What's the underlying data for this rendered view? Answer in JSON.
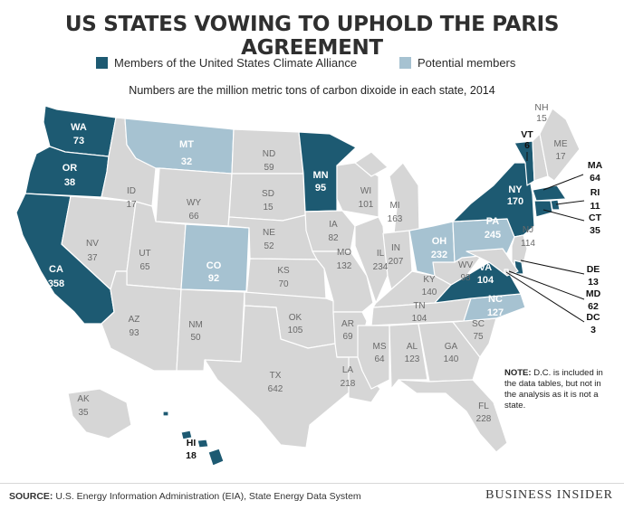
{
  "title": "US STATES VOWING TO UPHOLD THE PARIS AGREEMENT",
  "legend": {
    "members_label": "Members of the United States Climate Alliance",
    "potential_label": "Potential members"
  },
  "subtitle": "Numbers are the million metric tons of carbon dixoide in each state, 2014",
  "colors": {
    "member": "#1d5a72",
    "potential": "#a6c2d1",
    "other": "#d6d6d6",
    "border": "#ffffff"
  },
  "states": [
    {
      "abbr": "WA",
      "value": "73",
      "status": "member"
    },
    {
      "abbr": "OR",
      "value": "38",
      "status": "member"
    },
    {
      "abbr": "CA",
      "value": "358",
      "status": "member"
    },
    {
      "abbr": "NV",
      "value": "37",
      "status": "other"
    },
    {
      "abbr": "ID",
      "value": "17",
      "status": "other"
    },
    {
      "abbr": "MT",
      "value": "32",
      "status": "potential"
    },
    {
      "abbr": "WY",
      "value": "66",
      "status": "other"
    },
    {
      "abbr": "UT",
      "value": "65",
      "status": "other"
    },
    {
      "abbr": "CO",
      "value": "92",
      "status": "potential"
    },
    {
      "abbr": "AZ",
      "value": "93",
      "status": "other"
    },
    {
      "abbr": "NM",
      "value": "50",
      "status": "other"
    },
    {
      "abbr": "ND",
      "value": "59",
      "status": "other"
    },
    {
      "abbr": "SD",
      "value": "15",
      "status": "other"
    },
    {
      "abbr": "NE",
      "value": "52",
      "status": "other"
    },
    {
      "abbr": "KS",
      "value": "70",
      "status": "other"
    },
    {
      "abbr": "OK",
      "value": "105",
      "status": "other"
    },
    {
      "abbr": "TX",
      "value": "642",
      "status": "other"
    },
    {
      "abbr": "MN",
      "value": "95",
      "status": "member"
    },
    {
      "abbr": "IA",
      "value": "82",
      "status": "other"
    },
    {
      "abbr": "MO",
      "value": "132",
      "status": "other"
    },
    {
      "abbr": "AR",
      "value": "69",
      "status": "other"
    },
    {
      "abbr": "LA",
      "value": "218",
      "status": "other"
    },
    {
      "abbr": "WI",
      "value": "101",
      "status": "other"
    },
    {
      "abbr": "IL",
      "value": "234",
      "status": "other"
    },
    {
      "abbr": "MI",
      "value": "163",
      "status": "other"
    },
    {
      "abbr": "IN",
      "value": "207",
      "status": "other"
    },
    {
      "abbr": "OH",
      "value": "232",
      "status": "potential"
    },
    {
      "abbr": "KY",
      "value": "140",
      "status": "other"
    },
    {
      "abbr": "TN",
      "value": "104",
      "status": "other"
    },
    {
      "abbr": "MS",
      "value": "64",
      "status": "other"
    },
    {
      "abbr": "AL",
      "value": "123",
      "status": "other"
    },
    {
      "abbr": "GA",
      "value": "140",
      "status": "other"
    },
    {
      "abbr": "FL",
      "value": "228",
      "status": "other"
    },
    {
      "abbr": "SC",
      "value": "75",
      "status": "other"
    },
    {
      "abbr": "NC",
      "value": "127",
      "status": "potential"
    },
    {
      "abbr": "VA",
      "value": "104",
      "status": "member"
    },
    {
      "abbr": "WV",
      "value": "98",
      "status": "other"
    },
    {
      "abbr": "PA",
      "value": "245",
      "status": "potential"
    },
    {
      "abbr": "NY",
      "value": "170",
      "status": "member"
    },
    {
      "abbr": "NJ",
      "value": "114",
      "status": "other"
    },
    {
      "abbr": "VT",
      "value": "6",
      "status": "member"
    },
    {
      "abbr": "NH",
      "value": "15",
      "status": "other"
    },
    {
      "abbr": "ME",
      "value": "17",
      "status": "other"
    },
    {
      "abbr": "MA",
      "value": "64",
      "status": "member"
    },
    {
      "abbr": "RI",
      "value": "11",
      "status": "member"
    },
    {
      "abbr": "CT",
      "value": "35",
      "status": "member"
    },
    {
      "abbr": "DE",
      "value": "13",
      "status": "member"
    },
    {
      "abbr": "MD",
      "value": "62",
      "status": "other"
    },
    {
      "abbr": "DC",
      "value": "3",
      "status": "other"
    },
    {
      "abbr": "AK",
      "value": "35",
      "status": "other"
    },
    {
      "abbr": "HI",
      "value": "18",
      "status": "member"
    }
  ],
  "note": {
    "label": "NOTE:",
    "text": "D.C. is included in the data tables, but not in the analysis as it is not a state."
  },
  "source": {
    "label": "SOURCE:",
    "text": "U.S. Energy Information Administration (EIA), State Energy Data System"
  },
  "brand": "BUSINESS INSIDER"
}
